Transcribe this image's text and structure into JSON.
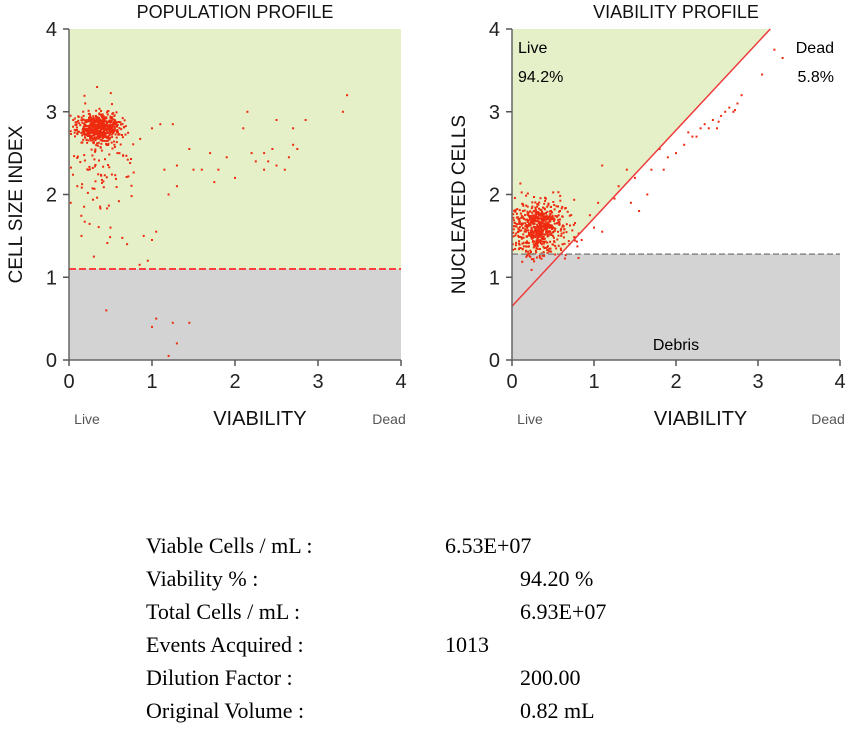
{
  "chart_data": [
    {
      "type": "scatter",
      "title": "POPULATION PROFILE",
      "xlabel": "VIABILITY",
      "ylabel": "CELL SIZE INDEX",
      "xlim": [
        0,
        4
      ],
      "ylim": [
        0,
        4
      ],
      "xticks": [
        "0",
        "1",
        "2",
        "3",
        "4"
      ],
      "yticks": [
        "0",
        "1",
        "2",
        "3",
        "4"
      ],
      "x_end_labels": [
        "Live",
        "Dead"
      ],
      "threshold_y": 1.1,
      "colors": {
        "upper": "#e6f0c8",
        "lower": "#d3d3d3",
        "points": "#ee2a0f",
        "threshold": "#ff4040"
      },
      "clusters": [
        {
          "cx": 0.36,
          "cy": 2.8,
          "sx": 0.13,
          "sy": 0.09,
          "n": 560
        },
        {
          "cx": 0.42,
          "cy": 2.35,
          "sx": 0.2,
          "sy": 0.35,
          "n": 95
        }
      ],
      "points": [
        [
          0.05,
          2.9
        ],
        [
          0.1,
          2.1
        ],
        [
          0.15,
          1.5
        ],
        [
          0.02,
          1.9
        ],
        [
          0.3,
          1.25
        ],
        [
          0.45,
          0.6
        ],
        [
          0.5,
          1.6
        ],
        [
          0.7,
          1.4
        ],
        [
          0.9,
          1.5
        ],
        [
          1.0,
          1.45
        ],
        [
          1.05,
          1.55
        ],
        [
          1.15,
          2.3
        ],
        [
          1.2,
          2.0
        ],
        [
          1.0,
          2.8
        ],
        [
          1.1,
          2.85
        ],
        [
          1.25,
          2.85
        ],
        [
          1.3,
          2.1
        ],
        [
          1.45,
          2.55
        ],
        [
          1.5,
          2.3
        ],
        [
          1.6,
          2.3
        ],
        [
          1.7,
          2.5
        ],
        [
          1.8,
          2.3
        ],
        [
          1.9,
          2.45
        ],
        [
          2.1,
          2.8
        ],
        [
          2.2,
          2.5
        ],
        [
          2.25,
          2.4
        ],
        [
          2.35,
          2.5
        ],
        [
          2.4,
          2.4
        ],
        [
          2.45,
          2.55
        ],
        [
          2.5,
          2.35
        ],
        [
          2.6,
          2.3
        ],
        [
          2.65,
          2.45
        ],
        [
          2.7,
          2.8
        ],
        [
          2.75,
          2.55
        ],
        [
          2.85,
          2.9
        ],
        [
          2.15,
          3.0
        ],
        [
          3.35,
          3.2
        ],
        [
          3.3,
          3.0
        ],
        [
          1.75,
          2.15
        ],
        [
          2.5,
          2.9
        ],
        [
          1.3,
          2.35
        ],
        [
          2.0,
          2.2
        ],
        [
          2.35,
          2.3
        ],
        [
          2.7,
          2.6
        ],
        [
          1.0,
          0.4
        ],
        [
          1.05,
          0.5
        ],
        [
          1.25,
          0.45
        ],
        [
          1.2,
          0.05
        ],
        [
          1.3,
          0.2
        ],
        [
          1.45,
          0.45
        ],
        [
          0.95,
          1.2
        ],
        [
          1.1,
          1.1
        ],
        [
          0.85,
          1.15
        ]
      ]
    },
    {
      "type": "scatter",
      "title": "VIABILITY PROFILE",
      "xlabel": "VIABILITY",
      "ylabel": "NUCLEATED CELLS",
      "xlim": [
        0,
        4
      ],
      "ylim": [
        0,
        4
      ],
      "xticks": [
        "0",
        "1",
        "2",
        "3",
        "4"
      ],
      "yticks": [
        "0",
        "1",
        "2",
        "3",
        "4"
      ],
      "x_end_labels": [
        "Live",
        "Dead"
      ],
      "threshold_y": 1.28,
      "gate_line": [
        [
          0,
          0.65
        ],
        [
          3.15,
          4.0
        ]
      ],
      "region_labels": {
        "live": "Live",
        "live_pct": "94.2%",
        "dead": "Dead",
        "dead_pct": "5.8%",
        "debris": "Debris"
      },
      "colors": {
        "live": "#e6f0c8",
        "dead": "#ffffff",
        "debris": "#d3d3d3",
        "points": "#ee2a0f",
        "gate": "#ee3b3b",
        "threshold": "#888888"
      },
      "clusters": [
        {
          "cx": 0.33,
          "cy": 1.6,
          "sx": 0.17,
          "sy": 0.17,
          "n": 620
        }
      ],
      "points": [
        [
          0.6,
          1.5
        ],
        [
          0.7,
          1.4
        ],
        [
          0.85,
          1.45
        ],
        [
          1.0,
          1.6
        ],
        [
          1.1,
          1.55
        ],
        [
          1.3,
          2.1
        ],
        [
          1.4,
          2.3
        ],
        [
          1.5,
          2.2
        ],
        [
          1.55,
          1.8
        ],
        [
          1.65,
          2.0
        ],
        [
          1.7,
          2.3
        ],
        [
          1.8,
          2.55
        ],
        [
          1.9,
          2.45
        ],
        [
          2.0,
          2.5
        ],
        [
          2.1,
          2.6
        ],
        [
          2.15,
          2.75
        ],
        [
          2.2,
          2.7
        ],
        [
          2.3,
          2.8
        ],
        [
          2.35,
          2.85
        ],
        [
          2.45,
          2.9
        ],
        [
          2.5,
          2.8
        ],
        [
          2.55,
          2.95
        ],
        [
          2.6,
          3.0
        ],
        [
          2.65,
          3.05
        ],
        [
          2.7,
          3.0
        ],
        [
          2.75,
          3.1
        ],
        [
          2.8,
          3.2
        ],
        [
          2.4,
          2.8
        ],
        [
          1.45,
          1.9
        ],
        [
          1.1,
          2.35
        ],
        [
          3.05,
          3.45
        ],
        [
          3.2,
          3.75
        ],
        [
          3.3,
          3.65
        ],
        [
          0.95,
          1.75
        ],
        [
          1.05,
          1.9
        ],
        [
          1.25,
          1.95
        ],
        [
          2.25,
          2.7
        ],
        [
          2.72,
          3.02
        ],
        [
          2.52,
          2.88
        ],
        [
          1.85,
          2.3
        ]
      ]
    }
  ],
  "stats": [
    {
      "label": "Viable Cells / mL :",
      "value": "6.53E+07",
      "align": "short"
    },
    {
      "label": "Viability % :",
      "value": "94.20 %",
      "align": "long"
    },
    {
      "label": "Total Cells / mL :",
      "value": "6.93E+07",
      "align": "long"
    },
    {
      "label": "Events Acquired :",
      "value": "1013",
      "align": "short"
    },
    {
      "label": "Dilution Factor :",
      "value": "200.00",
      "align": "long"
    },
    {
      "label": "Original Volume :",
      "value": "0.82 mL",
      "align": "long"
    }
  ]
}
